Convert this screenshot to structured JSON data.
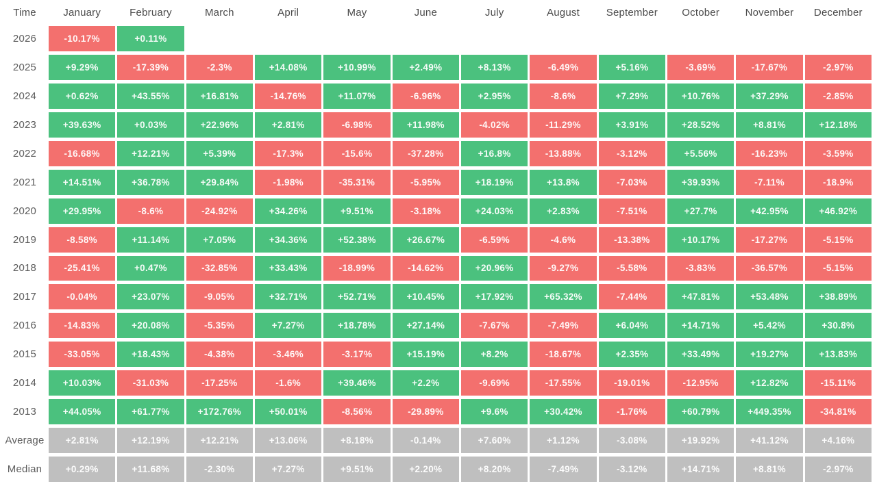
{
  "header": {
    "time_label": "Time",
    "months": [
      "January",
      "February",
      "March",
      "April",
      "May",
      "June",
      "July",
      "August",
      "September",
      "October",
      "November",
      "December"
    ]
  },
  "colors": {
    "positive": "#4bc17e",
    "negative": "#f3706e",
    "neutral": "#bfbfbf"
  },
  "chart_data": {
    "type": "heatmap",
    "title": "",
    "columns": [
      "January",
      "February",
      "March",
      "April",
      "May",
      "June",
      "July",
      "August",
      "September",
      "October",
      "November",
      "December"
    ],
    "row_label_header": "Time",
    "legend": "green = positive monthly return, red = negative monthly return, gray = summary statistics",
    "rows": [
      {
        "label": "2026",
        "type": "year",
        "values": [
          "-10.17%",
          "+0.11%",
          "",
          "",
          "",
          "",
          "",
          "",
          "",
          "",
          "",
          ""
        ]
      },
      {
        "label": "2025",
        "type": "year",
        "values": [
          "+9.29%",
          "-17.39%",
          "-2.3%",
          "+14.08%",
          "+10.99%",
          "+2.49%",
          "+8.13%",
          "-6.49%",
          "+5.16%",
          "-3.69%",
          "-17.67%",
          "-2.97%"
        ]
      },
      {
        "label": "2024",
        "type": "year",
        "values": [
          "+0.62%",
          "+43.55%",
          "+16.81%",
          "-14.76%",
          "+11.07%",
          "-6.96%",
          "+2.95%",
          "-8.6%",
          "+7.29%",
          "+10.76%",
          "+37.29%",
          "-2.85%"
        ]
      },
      {
        "label": "2023",
        "type": "year",
        "values": [
          "+39.63%",
          "+0.03%",
          "+22.96%",
          "+2.81%",
          "-6.98%",
          "+11.98%",
          "-4.02%",
          "-11.29%",
          "+3.91%",
          "+28.52%",
          "+8.81%",
          "+12.18%"
        ]
      },
      {
        "label": "2022",
        "type": "year",
        "values": [
          "-16.68%",
          "+12.21%",
          "+5.39%",
          "-17.3%",
          "-15.6%",
          "-37.28%",
          "+16.8%",
          "-13.88%",
          "-3.12%",
          "+5.56%",
          "-16.23%",
          "-3.59%"
        ]
      },
      {
        "label": "2021",
        "type": "year",
        "values": [
          "+14.51%",
          "+36.78%",
          "+29.84%",
          "-1.98%",
          "-35.31%",
          "-5.95%",
          "+18.19%",
          "+13.8%",
          "-7.03%",
          "+39.93%",
          "-7.11%",
          "-18.9%"
        ]
      },
      {
        "label": "2020",
        "type": "year",
        "values": [
          "+29.95%",
          "-8.6%",
          "-24.92%",
          "+34.26%",
          "+9.51%",
          "-3.18%",
          "+24.03%",
          "+2.83%",
          "-7.51%",
          "+27.7%",
          "+42.95%",
          "+46.92%"
        ]
      },
      {
        "label": "2019",
        "type": "year",
        "values": [
          "-8.58%",
          "+11.14%",
          "+7.05%",
          "+34.36%",
          "+52.38%",
          "+26.67%",
          "-6.59%",
          "-4.6%",
          "-13.38%",
          "+10.17%",
          "-17.27%",
          "-5.15%"
        ]
      },
      {
        "label": "2018",
        "type": "year",
        "values": [
          "-25.41%",
          "+0.47%",
          "-32.85%",
          "+33.43%",
          "-18.99%",
          "-14.62%",
          "+20.96%",
          "-9.27%",
          "-5.58%",
          "-3.83%",
          "-36.57%",
          "-5.15%"
        ]
      },
      {
        "label": "2017",
        "type": "year",
        "values": [
          "-0.04%",
          "+23.07%",
          "-9.05%",
          "+32.71%",
          "+52.71%",
          "+10.45%",
          "+17.92%",
          "+65.32%",
          "-7.44%",
          "+47.81%",
          "+53.48%",
          "+38.89%"
        ]
      },
      {
        "label": "2016",
        "type": "year",
        "values": [
          "-14.83%",
          "+20.08%",
          "-5.35%",
          "+7.27%",
          "+18.78%",
          "+27.14%",
          "-7.67%",
          "-7.49%",
          "+6.04%",
          "+14.71%",
          "+5.42%",
          "+30.8%"
        ]
      },
      {
        "label": "2015",
        "type": "year",
        "values": [
          "-33.05%",
          "+18.43%",
          "-4.38%",
          "-3.46%",
          "-3.17%",
          "+15.19%",
          "+8.2%",
          "-18.67%",
          "+2.35%",
          "+33.49%",
          "+19.27%",
          "+13.83%"
        ]
      },
      {
        "label": "2014",
        "type": "year",
        "values": [
          "+10.03%",
          "-31.03%",
          "-17.25%",
          "-1.6%",
          "+39.46%",
          "+2.2%",
          "-9.69%",
          "-17.55%",
          "-19.01%",
          "-12.95%",
          "+12.82%",
          "-15.11%"
        ]
      },
      {
        "label": "2013",
        "type": "year",
        "values": [
          "+44.05%",
          "+61.77%",
          "+172.76%",
          "+50.01%",
          "-8.56%",
          "-29.89%",
          "+9.6%",
          "+30.42%",
          "-1.76%",
          "+60.79%",
          "+449.35%",
          "-34.81%"
        ]
      },
      {
        "label": "Average",
        "type": "summary",
        "values": [
          "+2.81%",
          "+12.19%",
          "+12.21%",
          "+13.06%",
          "+8.18%",
          "-0.14%",
          "+7.60%",
          "+1.12%",
          "-3.08%",
          "+19.92%",
          "+41.12%",
          "+4.16%"
        ]
      },
      {
        "label": "Median",
        "type": "summary",
        "values": [
          "+0.29%",
          "+11.68%",
          "-2.30%",
          "+7.27%",
          "+9.51%",
          "+2.20%",
          "+8.20%",
          "-7.49%",
          "-3.12%",
          "+14.71%",
          "+8.81%",
          "-2.97%"
        ]
      }
    ]
  }
}
